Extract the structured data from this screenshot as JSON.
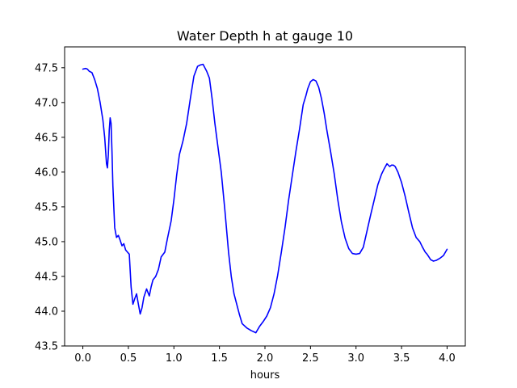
{
  "chart_data": {
    "type": "line",
    "title": "Water Depth h at gauge 10",
    "xlabel": "hours",
    "ylabel": "",
    "xlim": [
      -0.2,
      4.2
    ],
    "ylim": [
      43.5,
      47.8
    ],
    "xticks": [
      0.0,
      0.5,
      1.0,
      1.5,
      2.0,
      2.5,
      3.0,
      3.5,
      4.0
    ],
    "xtick_labels": [
      "0.0",
      "0.5",
      "1.0",
      "1.5",
      "2.0",
      "2.5",
      "3.0",
      "3.5",
      "4.0"
    ],
    "yticks": [
      43.5,
      44.0,
      44.5,
      45.0,
      45.5,
      46.0,
      46.5,
      47.0,
      47.5
    ],
    "ytick_labels": [
      "43.5",
      "44.0",
      "44.5",
      "45.0",
      "45.5",
      "46.0",
      "46.5",
      "47.0",
      "47.5"
    ],
    "grid": false,
    "series": [
      {
        "color": "#0000ff",
        "x": [
          0.0,
          0.03,
          0.05,
          0.07,
          0.1,
          0.13,
          0.16,
          0.19,
          0.22,
          0.24,
          0.26,
          0.27,
          0.28,
          0.29,
          0.3,
          0.31,
          0.32,
          0.33,
          0.35,
          0.37,
          0.39,
          0.41,
          0.43,
          0.45,
          0.47,
          0.49,
          0.51,
          0.53,
          0.55,
          0.57,
          0.59,
          0.61,
          0.63,
          0.65,
          0.67,
          0.7,
          0.73,
          0.75,
          0.77,
          0.8,
          0.83,
          0.86,
          0.9,
          0.93,
          0.97,
          1.0,
          1.03,
          1.06,
          1.1,
          1.14,
          1.18,
          1.22,
          1.26,
          1.29,
          1.32,
          1.34,
          1.36,
          1.39,
          1.42,
          1.45,
          1.48,
          1.52,
          1.56,
          1.6,
          1.63,
          1.66,
          1.69,
          1.72,
          1.75,
          1.8,
          1.85,
          1.9,
          1.94,
          1.98,
          2.02,
          2.06,
          2.1,
          2.14,
          2.18,
          2.22,
          2.26,
          2.3,
          2.34,
          2.38,
          2.42,
          2.45,
          2.47,
          2.5,
          2.53,
          2.56,
          2.59,
          2.62,
          2.65,
          2.68,
          2.72,
          2.76,
          2.8,
          2.84,
          2.88,
          2.92,
          2.96,
          3.0,
          3.04,
          3.08,
          3.12,
          3.16,
          3.2,
          3.24,
          3.28,
          3.31,
          3.34,
          3.37,
          3.39,
          3.41,
          3.43,
          3.46,
          3.5,
          3.54,
          3.58,
          3.62,
          3.66,
          3.7,
          3.73,
          3.76,
          3.78,
          3.8,
          3.82,
          3.85,
          3.88,
          3.92,
          3.96,
          4.0
        ],
        "y": [
          47.48,
          47.49,
          47.48,
          47.45,
          47.43,
          47.33,
          47.2,
          47.0,
          46.75,
          46.5,
          46.12,
          46.06,
          46.25,
          46.6,
          46.78,
          46.7,
          46.3,
          45.8,
          45.2,
          45.06,
          45.09,
          45.02,
          44.94,
          44.97,
          44.88,
          44.85,
          44.82,
          44.35,
          44.1,
          44.18,
          44.25,
          44.1,
          43.96,
          44.05,
          44.2,
          44.32,
          44.22,
          44.35,
          44.45,
          44.5,
          44.6,
          44.78,
          44.85,
          45.05,
          45.3,
          45.6,
          45.95,
          46.25,
          46.45,
          46.7,
          47.05,
          47.38,
          47.52,
          47.54,
          47.55,
          47.5,
          47.45,
          47.35,
          47.05,
          46.7,
          46.4,
          46.0,
          45.45,
          44.85,
          44.5,
          44.25,
          44.1,
          43.95,
          43.82,
          43.76,
          43.72,
          43.69,
          43.78,
          43.85,
          43.93,
          44.05,
          44.25,
          44.52,
          44.85,
          45.2,
          45.6,
          45.95,
          46.3,
          46.62,
          46.97,
          47.1,
          47.2,
          47.3,
          47.33,
          47.31,
          47.22,
          47.06,
          46.85,
          46.6,
          46.3,
          45.98,
          45.6,
          45.28,
          45.05,
          44.9,
          44.83,
          44.82,
          44.83,
          44.92,
          45.15,
          45.38,
          45.6,
          45.82,
          45.97,
          46.05,
          46.12,
          46.08,
          46.1,
          46.1,
          46.08,
          46.0,
          45.85,
          45.65,
          45.42,
          45.2,
          45.06,
          45.0,
          44.92,
          44.85,
          44.82,
          44.78,
          44.74,
          44.72,
          44.73,
          44.76,
          44.8,
          44.89
        ]
      }
    ]
  }
}
